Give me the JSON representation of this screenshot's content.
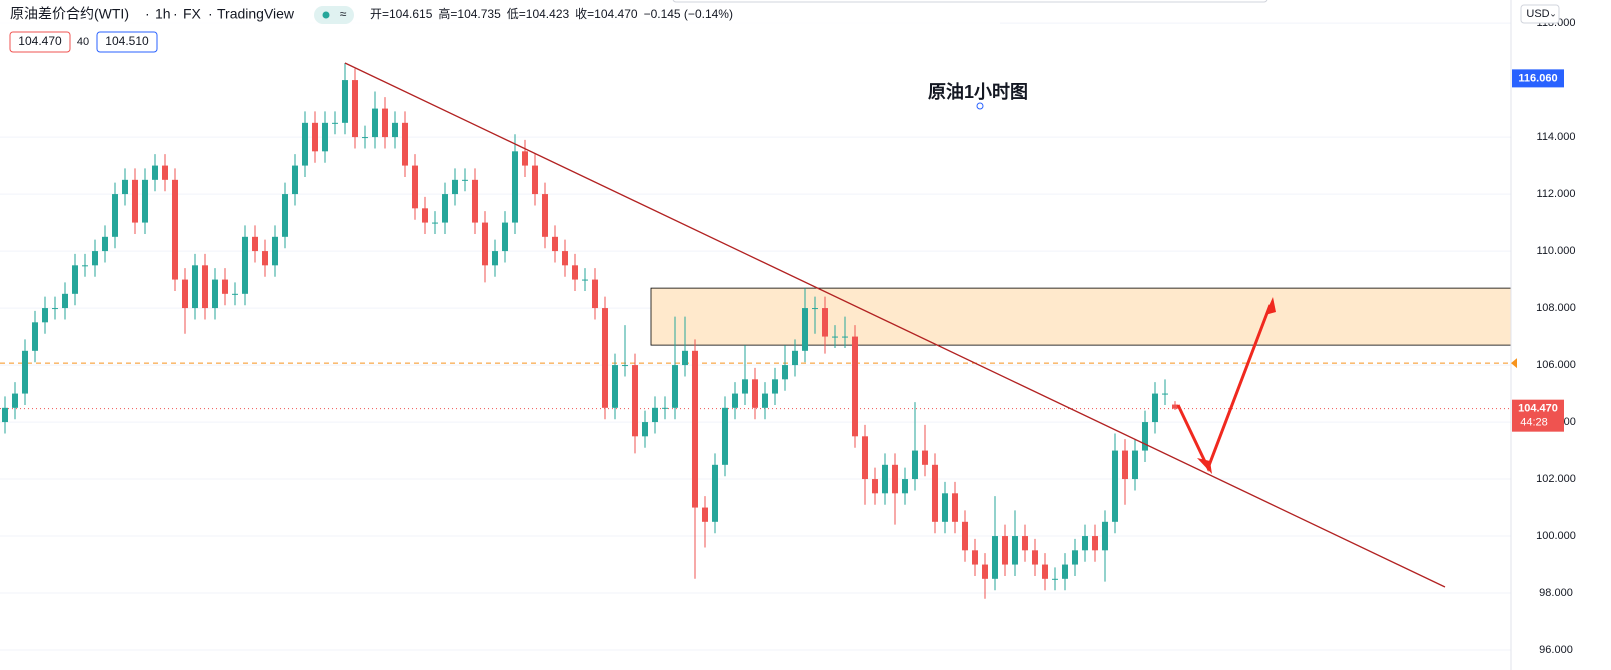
{
  "chart_data": {
    "type": "candlestick",
    "title": "原油差价合约(WTI)",
    "interval": "1h",
    "exchange": "FX",
    "source": "TradingView",
    "ohlc_legend": [
      "开=104.615",
      "高=104.735",
      "低=104.423",
      "收=104.470",
      "−0.145 (−0.14%)"
    ],
    "bid": "104.470",
    "spread": "40",
    "ask": "104.510",
    "annotation": "原油1小时图",
    "currency": "USD",
    "up_color": "#26a69a",
    "down_color": "#ef5350",
    "open": [
      104.0,
      104.5,
      105,
      106.5,
      107.5,
      108,
      108,
      108.5,
      109.5,
      109.5,
      110,
      110.5,
      112,
      112.5,
      111,
      112.5,
      113,
      112.5,
      109,
      108,
      109.5,
      108,
      109,
      108.5,
      108.5,
      110.5,
      110,
      109.5,
      110.5,
      112,
      113,
      114.5,
      113.5,
      114.5,
      114.5,
      116,
      114,
      114,
      115,
      114,
      114.5,
      113,
      111.5,
      111,
      111,
      112,
      112.5,
      112.5,
      111,
      109.5,
      110,
      111,
      113.5,
      113,
      112,
      110.5,
      110,
      109.5,
      109,
      109,
      108,
      104.5,
      106,
      106,
      103.5,
      104,
      104.5,
      104.5,
      106,
      106.5,
      101,
      100.5,
      102.5,
      104.5,
      105,
      105.5,
      104.5,
      105,
      105.5,
      106,
      106.5,
      108,
      108,
      107,
      107,
      107,
      103.5,
      102,
      101.5,
      102.5,
      101.5,
      102,
      103,
      102.5,
      100.5,
      101.5,
      100.5,
      99.5,
      99,
      98.5,
      100,
      99,
      100,
      99.5,
      99,
      98.5,
      98.5,
      99,
      99.5,
      100,
      99.5,
      100.5,
      103,
      102,
      103,
      104,
      105,
      104.615
    ],
    "high": [
      104.9,
      105.4,
      106.9,
      107.9,
      108.4,
      108.4,
      108.9,
      109.9,
      109.9,
      110.4,
      110.9,
      112.4,
      112.9,
      112.9,
      112.9,
      113.4,
      113.4,
      112.9,
      109.4,
      109.9,
      109.9,
      109.4,
      109.4,
      108.9,
      110.9,
      110.9,
      110.4,
      110.9,
      112.4,
      113.4,
      114.9,
      114.9,
      114.9,
      114.9,
      116.6,
      116.4,
      114.4,
      115.6,
      115.4,
      114.9,
      114.9,
      113.4,
      111.9,
      111.4,
      112.4,
      112.9,
      112.9,
      112.9,
      111.4,
      110.4,
      111.4,
      114.1,
      113.9,
      113.4,
      112.4,
      110.9,
      110.4,
      109.9,
      109.4,
      109.4,
      108.4,
      106.4,
      107.4,
      106.4,
      104.4,
      104.9,
      104.9,
      107.7,
      107.7,
      106.9,
      101.4,
      102.9,
      104.9,
      105.4,
      106.7,
      105.9,
      105.4,
      105.9,
      106.7,
      106.9,
      108.7,
      108.4,
      108.4,
      107.4,
      107.7,
      107.4,
      103.9,
      102.4,
      102.9,
      102.9,
      102.4,
      104.7,
      103.9,
      102.9,
      101.9,
      101.9,
      100.9,
      99.9,
      99.4,
      101.4,
      100.4,
      100.9,
      100.4,
      99.9,
      99.4,
      98.9,
      99.4,
      99.9,
      100.4,
      100.4,
      100.9,
      103.6,
      103.4,
      103.4,
      104.4,
      105.4,
      105.5,
      104.735
    ],
    "low": [
      103.6,
      104.1,
      104.6,
      106.1,
      107.1,
      107.6,
      107.6,
      108.1,
      109.1,
      109.1,
      109.6,
      110.1,
      111.6,
      110.6,
      110.6,
      112.1,
      112.1,
      108.6,
      107.1,
      107.6,
      107.6,
      107.6,
      108.1,
      108.1,
      108.1,
      109.6,
      109.1,
      109.1,
      110.1,
      111.6,
      112.6,
      113.1,
      113.1,
      114.1,
      114.1,
      113.6,
      113.6,
      113.6,
      113.6,
      113.6,
      112.6,
      111.1,
      110.6,
      110.6,
      110.6,
      111.6,
      112.1,
      110.6,
      108.9,
      109.1,
      109.6,
      110.6,
      112.6,
      111.6,
      110.1,
      109.6,
      109.1,
      108.6,
      108.6,
      107.6,
      104.1,
      104.1,
      105.6,
      102.9,
      103.1,
      103.6,
      104.1,
      104.1,
      105.6,
      98.5,
      99.6,
      100.1,
      102.1,
      104.1,
      104.6,
      104.1,
      104.1,
      104.6,
      105.1,
      105.6,
      106.1,
      107.1,
      106.4,
      106.6,
      106.6,
      103.1,
      101.1,
      101.1,
      101.1,
      100.4,
      101.1,
      101.6,
      102.1,
      100.1,
      100.1,
      100.1,
      99.1,
      98.6,
      97.8,
      98.1,
      98.6,
      98.6,
      99.1,
      98.6,
      98.1,
      98.1,
      98.1,
      98.6,
      99.1,
      99.1,
      98.4,
      100.1,
      101.1,
      101.6,
      102.6,
      103.6,
      104.6,
      104.423
    ],
    "close": [
      104.5,
      105,
      106.5,
      107.5,
      108,
      108,
      108.5,
      109.5,
      109.5,
      110,
      110.5,
      112,
      112.5,
      111,
      112.5,
      113,
      112.5,
      109,
      108,
      109.5,
      108,
      109,
      108.5,
      108.5,
      110.5,
      110,
      109.5,
      110.5,
      112,
      113,
      114.5,
      113.5,
      114.5,
      114.5,
      116,
      114,
      114,
      115,
      114,
      114.5,
      113,
      111.5,
      111,
      111,
      112,
      112.5,
      112.5,
      111,
      109.5,
      110,
      111,
      113.5,
      113,
      112,
      110.5,
      110,
      109.5,
      109,
      109,
      108,
      104.5,
      106,
      106,
      103.5,
      104,
      104.5,
      104.5,
      106,
      106.5,
      101,
      100.5,
      102.5,
      104.5,
      105,
      105.5,
      104.5,
      105,
      105.5,
      106,
      106.5,
      108,
      108,
      107,
      107,
      107,
      103.5,
      102,
      101.5,
      102.5,
      101.5,
      102,
      103,
      102.5,
      100.5,
      101.5,
      100.5,
      99.5,
      99,
      98.5,
      100,
      99,
      100,
      99.5,
      99,
      98.5,
      98.5,
      99,
      99.5,
      100,
      99.5,
      100.5,
      103,
      102,
      103,
      104,
      105,
      105,
      104.47
    ],
    "ylim": [
      95.3,
      118.81
    ],
    "yticks": [
      {
        "value": 96,
        "label": "96.000"
      },
      {
        "value": 98,
        "label": "98.000"
      },
      {
        "value": 100,
        "label": "100.000"
      },
      {
        "value": 102,
        "label": "102.000"
      },
      {
        "value": 104,
        "label": "104.000"
      },
      {
        "value": 106,
        "label": "106.000"
      },
      {
        "value": 108,
        "label": "108.000"
      },
      {
        "value": 110,
        "label": "110.000"
      },
      {
        "value": 112,
        "label": "112.000"
      },
      {
        "value": 114,
        "label": "114.000"
      },
      {
        "value": 118,
        "label": "118.000"
      }
    ],
    "grid": true,
    "high_marker": {
      "value": 116.06,
      "label": "116.060"
    },
    "last_price": {
      "value": 104.47,
      "label": "104.470",
      "countdown": "44:28"
    },
    "alert_line": 106.07,
    "zone": [
      106.7,
      108.7
    ]
  }
}
